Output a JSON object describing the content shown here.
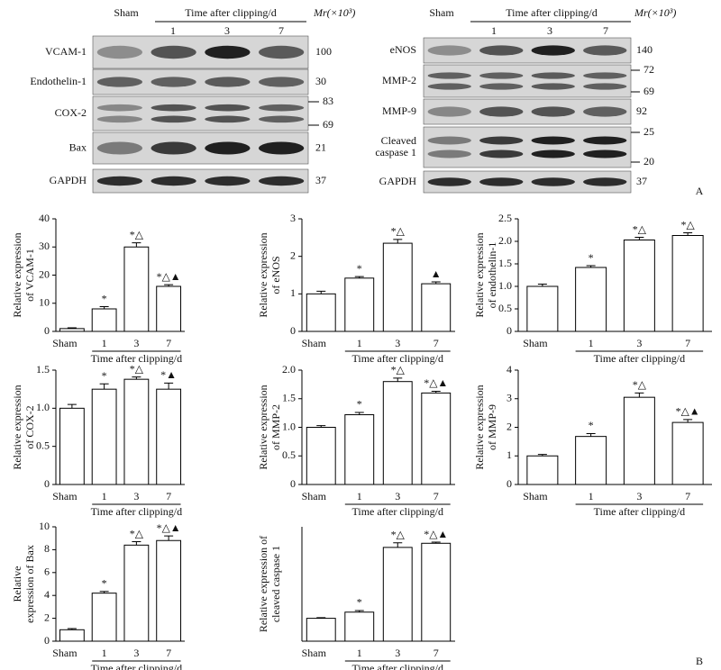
{
  "blots": {
    "left": {
      "sham": "Sham",
      "time": "Time after clipping/d",
      "days": [
        "1",
        "3",
        "7"
      ],
      "mr": "Mr(×10³)",
      "rows": [
        {
          "label": "VCAM-1",
          "markers": [
            100
          ]
        },
        {
          "label": "Endothelin-1",
          "markers": [
            30
          ]
        },
        {
          "label": "COX-2",
          "markers": [
            83,
            69
          ]
        },
        {
          "label": "Bax",
          "markers": [
            21
          ]
        },
        {
          "label": "GAPDH",
          "markers": [
            37
          ]
        }
      ]
    },
    "right": {
      "sham": "Sham",
      "time": "Time after clipping/d",
      "days": [
        "1",
        "3",
        "7"
      ],
      "mr": "Mr(×10³)",
      "rows": [
        {
          "label": "eNOS",
          "markers": [
            140
          ]
        },
        {
          "label": "MMP-2",
          "markers": [
            72,
            69
          ]
        },
        {
          "label": "MMP-9",
          "markers": [
            92
          ]
        },
        {
          "label": [
            "Cleaved",
            "caspase 1"
          ],
          "markers": [
            25,
            20
          ]
        },
        {
          "label": "GAPDH",
          "markers": [
            37
          ]
        }
      ]
    },
    "panel": "A"
  },
  "panel_b": "B",
  "chart_data": [
    {
      "type": "bar",
      "ylabel": [
        "Relative expression",
        "of VCAM-1"
      ],
      "xlabel": "Time after clipping/d",
      "categories": [
        "Sham",
        "1",
        "3",
        "7"
      ],
      "values": [
        1.0,
        8,
        30,
        16
      ],
      "errors": [
        0.3,
        0.8,
        1.5,
        0.6
      ],
      "annotations": [
        null,
        "*",
        "*△",
        "*△▲"
      ],
      "ylim": [
        0,
        40
      ],
      "yticks": [
        0,
        10,
        20,
        30,
        40
      ]
    },
    {
      "type": "bar",
      "ylabel": [
        "Relative expression",
        "of eNOS"
      ],
      "xlabel": "Time after clipping/d",
      "categories": [
        "Sham",
        "1",
        "3",
        "7"
      ],
      "values": [
        1.0,
        1.42,
        2.35,
        1.27
      ],
      "errors": [
        0.07,
        0.04,
        0.1,
        0.05
      ],
      "annotations": [
        null,
        "*",
        "*△",
        "▲"
      ],
      "ylim": [
        0,
        3
      ],
      "yticks": [
        0,
        1,
        2,
        3
      ]
    },
    {
      "type": "bar",
      "ylabel": [
        "Relative expression",
        "of endothelin-1"
      ],
      "xlabel": "Time after clipping/d",
      "categories": [
        "Sham",
        "1",
        "3",
        "7"
      ],
      "values": [
        1.0,
        1.42,
        2.03,
        2.13
      ],
      "errors": [
        0.05,
        0.04,
        0.06,
        0.06
      ],
      "annotations": [
        null,
        "*",
        "*△",
        "*△"
      ],
      "ylim": [
        0,
        2.5
      ],
      "yticks": [
        0,
        0.5,
        {
          "value": 1,
          "label": "1.0"
        },
        1.5,
        {
          "value": 2,
          "label": "2.0"
        },
        2.5
      ]
    },
    {
      "type": "bar",
      "ylabel": [
        "Relative expression",
        "of COX-2"
      ],
      "xlabel": "Time after clipping/d",
      "categories": [
        "Sham",
        "1",
        "3",
        "7"
      ],
      "values": [
        1.0,
        1.25,
        1.38,
        1.25
      ],
      "errors": [
        0.05,
        0.07,
        0.03,
        0.08
      ],
      "annotations": [
        null,
        "*",
        "*△",
        "*▲"
      ],
      "ylim": [
        0,
        1.5
      ],
      "yticks": [
        0,
        0.5,
        {
          "value": 1,
          "label": "1.0"
        },
        1.5
      ]
    },
    {
      "type": "bar",
      "ylabel": [
        "Relative expression",
        "of MMP-2"
      ],
      "xlabel": "Time after clipping/d",
      "categories": [
        "Sham",
        "1",
        "3",
        "7"
      ],
      "values": [
        1.0,
        1.22,
        1.8,
        1.6
      ],
      "errors": [
        0.03,
        0.04,
        0.06,
        0.03
      ],
      "annotations": [
        null,
        "*",
        "*△",
        "*△▲"
      ],
      "ylim": [
        0,
        2
      ],
      "yticks": [
        0,
        0.5,
        {
          "value": 1,
          "label": "1.0"
        },
        1.5,
        {
          "value": 2,
          "label": "2.0"
        }
      ]
    },
    {
      "type": "bar",
      "ylabel": [
        "Relative expression",
        "of MMP-9"
      ],
      "xlabel": "Time after clipping/d",
      "categories": [
        "Sham",
        "1",
        "3",
        "7"
      ],
      "values": [
        1.0,
        1.68,
        3.05,
        2.17
      ],
      "errors": [
        0.05,
        0.1,
        0.15,
        0.1
      ],
      "annotations": [
        null,
        "*",
        "*△",
        "*△▲"
      ],
      "ylim": [
        0,
        4
      ],
      "yticks": [
        0,
        1,
        2,
        3,
        4
      ]
    },
    {
      "type": "bar",
      "ylabel": [
        "Relative",
        "expression of Bax"
      ],
      "xlabel": "Time after clipping/d",
      "categories": [
        "Sham",
        "1",
        "3",
        "7"
      ],
      "values": [
        1.0,
        4.2,
        8.4,
        8.8
      ],
      "errors": [
        0.1,
        0.15,
        0.3,
        0.4
      ],
      "annotations": [
        null,
        "*",
        "*△",
        "*△▲"
      ],
      "ylim": [
        0,
        10
      ],
      "yticks": [
        0,
        2,
        4,
        6,
        8,
        10
      ]
    },
    {
      "type": "bar",
      "ylabel": [
        "Relative expression of",
        "cleaved caspase 1"
      ],
      "xlabel": "Time after clipping/d",
      "categories": [
        "Sham",
        "1",
        "3",
        "7"
      ],
      "values": [
        1.0,
        1.27,
        4.1,
        4.28
      ],
      "errors": [
        0.03,
        0.07,
        0.2,
        0.05
      ],
      "annotations": [
        null,
        "*",
        "*△",
        "*△▲"
      ],
      "ylim": [
        0,
        5
      ]
    }
  ]
}
